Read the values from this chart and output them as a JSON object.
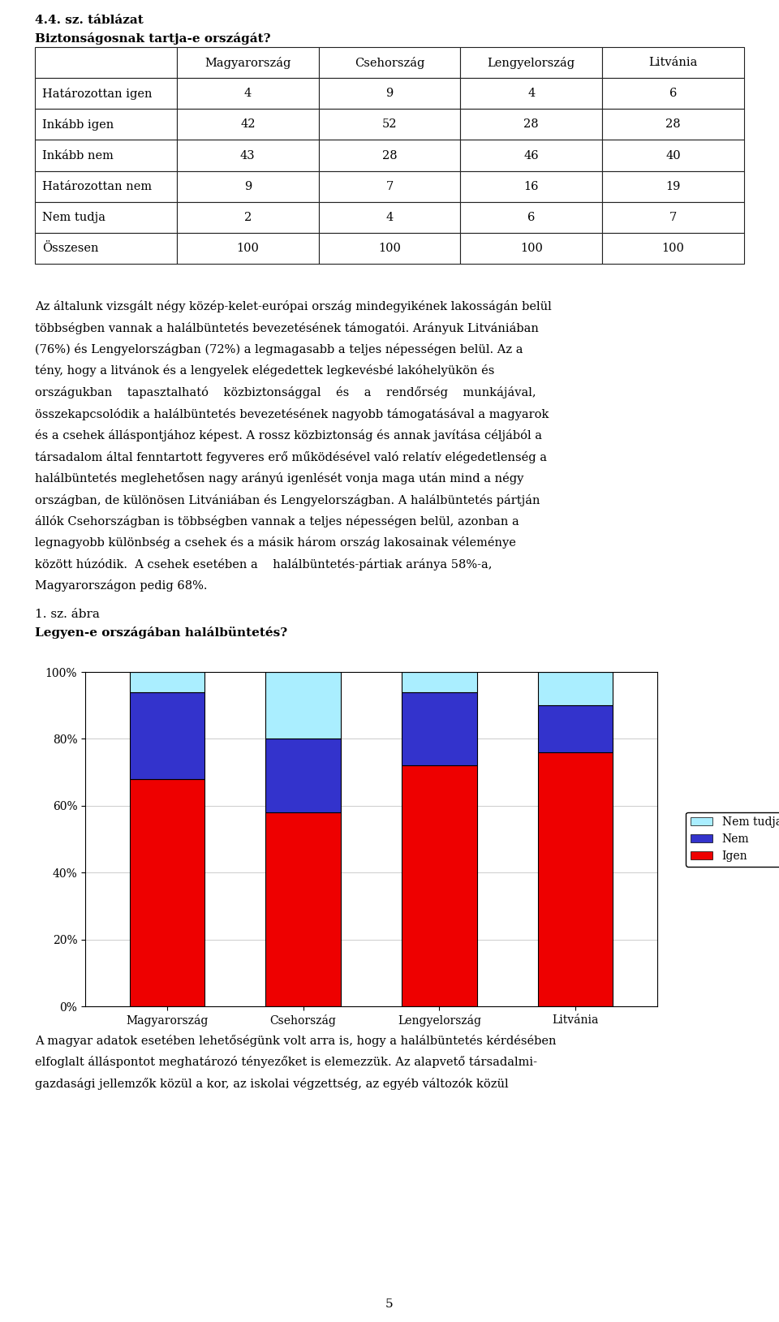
{
  "table_title": "4.4. sz. táblázat",
  "table_subtitle": "Biztonságosnak tartja-e országát?",
  "table_headers": [
    "",
    "Magyarország",
    "Csehország",
    "Lengyelország",
    "Litvánia"
  ],
  "table_rows": [
    [
      "Határozottan igen",
      "4",
      "9",
      "4",
      "6"
    ],
    [
      "Inkább igen",
      "42",
      "52",
      "28",
      "28"
    ],
    [
      "Inkább nem",
      "43",
      "28",
      "46",
      "40"
    ],
    [
      "Határozottan nem",
      "9",
      "7",
      "16",
      "19"
    ],
    [
      "Nem tudja",
      "2",
      "4",
      "6",
      "7"
    ],
    [
      "Összesen",
      "100",
      "100",
      "100",
      "100"
    ]
  ],
  "chart_label1": "1. sz. ábra",
  "chart_label2": "Legyen-e országában halálbüntetés?",
  "categories": [
    "Magyarország",
    "Csehország",
    "Lengyelország",
    "Litvánia"
  ],
  "igen": [
    68,
    58,
    72,
    76
  ],
  "nem": [
    26,
    22,
    22,
    14
  ],
  "nem_tudja": [
    6,
    20,
    6,
    10
  ],
  "color_igen": "#EE0000",
  "color_nem": "#3333CC",
  "color_nem_tudja": "#AAEEFF",
  "yticks": [
    0,
    20,
    40,
    60,
    80,
    100
  ],
  "body_text": "Az általunk vizsgált négy közép-kelet-európai ország mindegyikének lakosságán belül többségben vannak a halálbüntetés bevezetésének támogatói. Arányuk Litvániában (76%) és Lengyelországban (72%) a legmagasabb a teljes népességen belül. Az a tény, hogy a litvánok és a lengyelek elégedettek legkevésbé lakóhelyükön és országukban tapasztalható közbiztonsággal és a rendőrség munkájával, összekapcsolódik a halálbüntetés bevezetésének nagyobb támogatásával a magyarok és a csehek álláspontjához képest. A rossz közbiztonság és annak javítása céljából a társadalom által fenntartott fegyveres erő működésével való relatív elégedetlenség a halálbüntetés meglehetősen nagy arányú igenlését vonja maga után mind a négy országban, de különösen Litvániában és Lengyelországban. A halálbüntetés pártján állók Csehországban is többségben vannak a teljes népességen belül, azonban a legnagyobb különbség a csehek és a másik három ország lakosainak véleménye között húzódik. A csehek esetében a    halálbüntetés-pártiak aránya 58%-a, Magyarországon pedig 68%.",
  "bottom_text": "A magyar adatok esetében lehetőségünk volt arra is, hogy a halálbüntetés kérdésében elfoglalt álláspontot meghatározó tényezőket is elemezzük. Az alapvető társadalmi-gazdasági jellemzők közül a kor, az iskolai végzettség, az egyéb változók közül",
  "page_num": "5"
}
